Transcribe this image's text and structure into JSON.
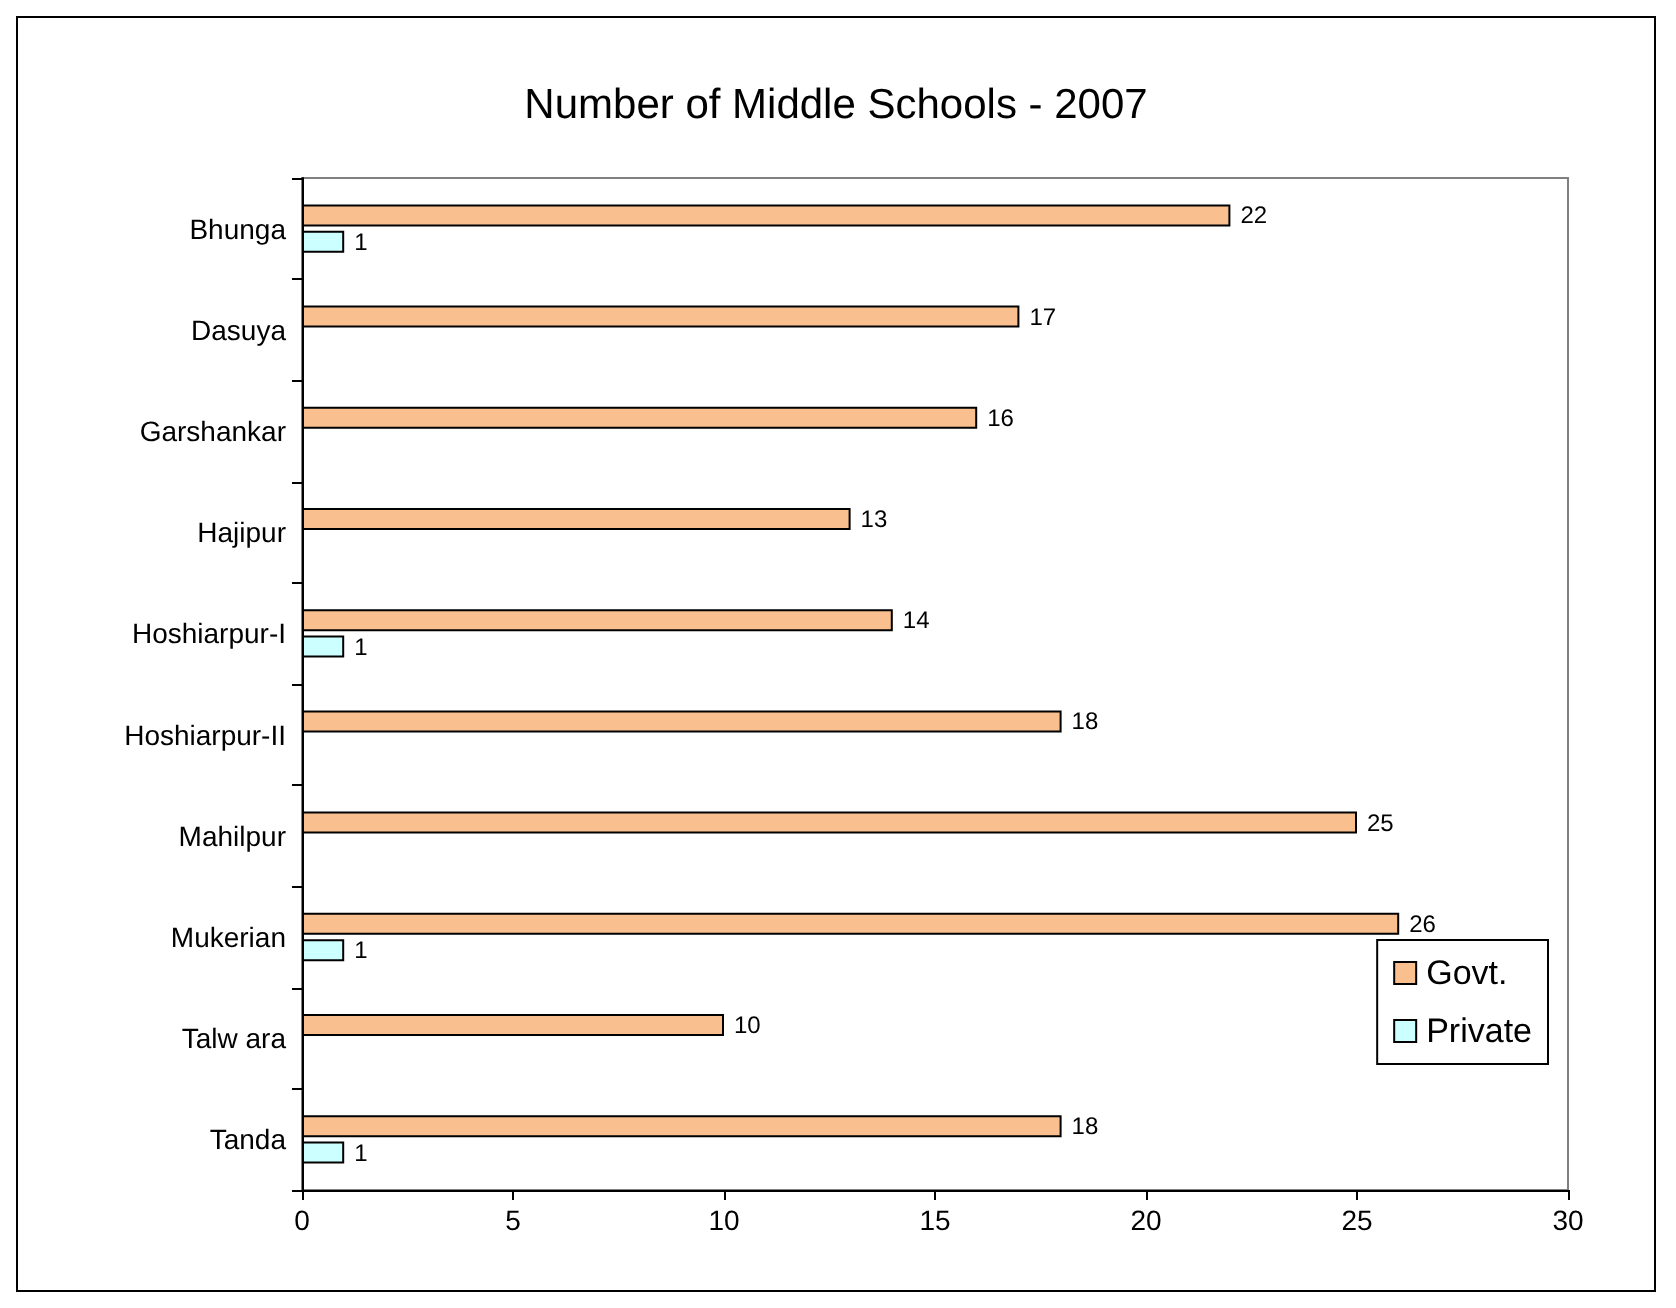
{
  "chart_data": {
    "type": "bar",
    "orientation": "horizontal",
    "title": "Number of Middle Schools - 2007",
    "categories": [
      "Bhunga",
      "Dasuya",
      "Garshankar",
      "Hajipur",
      "Hoshiarpur-I",
      "Hoshiarpur-II",
      "Mahilpur",
      "Mukerian",
      "Talw ara",
      "Tanda"
    ],
    "series": [
      {
        "name": "Govt.",
        "color": "#f9bf8f",
        "values": [
          22,
          17,
          16,
          13,
          14,
          18,
          25,
          26,
          10,
          18
        ]
      },
      {
        "name": "Private",
        "color": "#ccffff",
        "values": [
          1,
          null,
          null,
          null,
          1,
          null,
          null,
          1,
          null,
          1
        ]
      }
    ],
    "xlim": [
      0,
      30
    ],
    "xticks": [
      0,
      5,
      10,
      15,
      20,
      25,
      30
    ],
    "data_labels": true,
    "legend": "bottom right"
  }
}
